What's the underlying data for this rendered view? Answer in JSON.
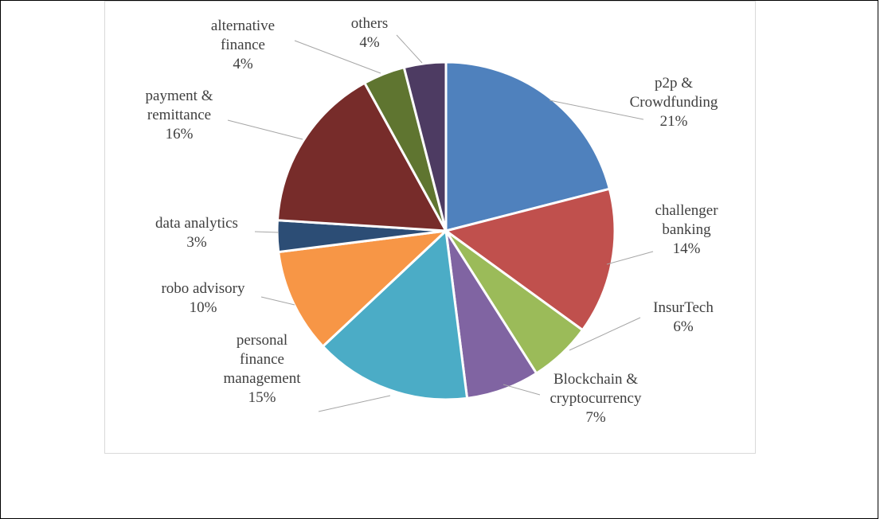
{
  "chart_data": {
    "type": "pie",
    "title": "",
    "start_angle_deg": 0,
    "direction": "clockwise",
    "slices": [
      {
        "category": "p2p &\nCrowdfunding",
        "label": "21%",
        "value": 21,
        "color": "#4f81bd"
      },
      {
        "category": "challenger\nbanking",
        "label": "14%",
        "value": 14,
        "color": "#c0504d"
      },
      {
        "category": "InsurTech",
        "label": "6%",
        "value": 6,
        "color": "#9bbb59"
      },
      {
        "category": "Blockchain &\ncryptocurrency",
        "label": "7%",
        "value": 7,
        "color": "#8064a2"
      },
      {
        "category": "personal\nfinance\nmanagement",
        "label": "15%",
        "value": 15,
        "color": "#4bacc6"
      },
      {
        "category": "robo advisory",
        "label": "10%",
        "value": 10,
        "color": "#f79646"
      },
      {
        "category": "data analytics",
        "label": "3%",
        "value": 3,
        "color": "#2c4d75"
      },
      {
        "category": "payment &\nremittance",
        "label": "16%",
        "value": 16,
        "color": "#772c2a"
      },
      {
        "category": "alternative\nfinance",
        "label": "4%",
        "value": 4,
        "color": "#5f7530"
      },
      {
        "category": "others",
        "label": "4%",
        "value": 4,
        "color": "#4d3b62"
      }
    ]
  }
}
